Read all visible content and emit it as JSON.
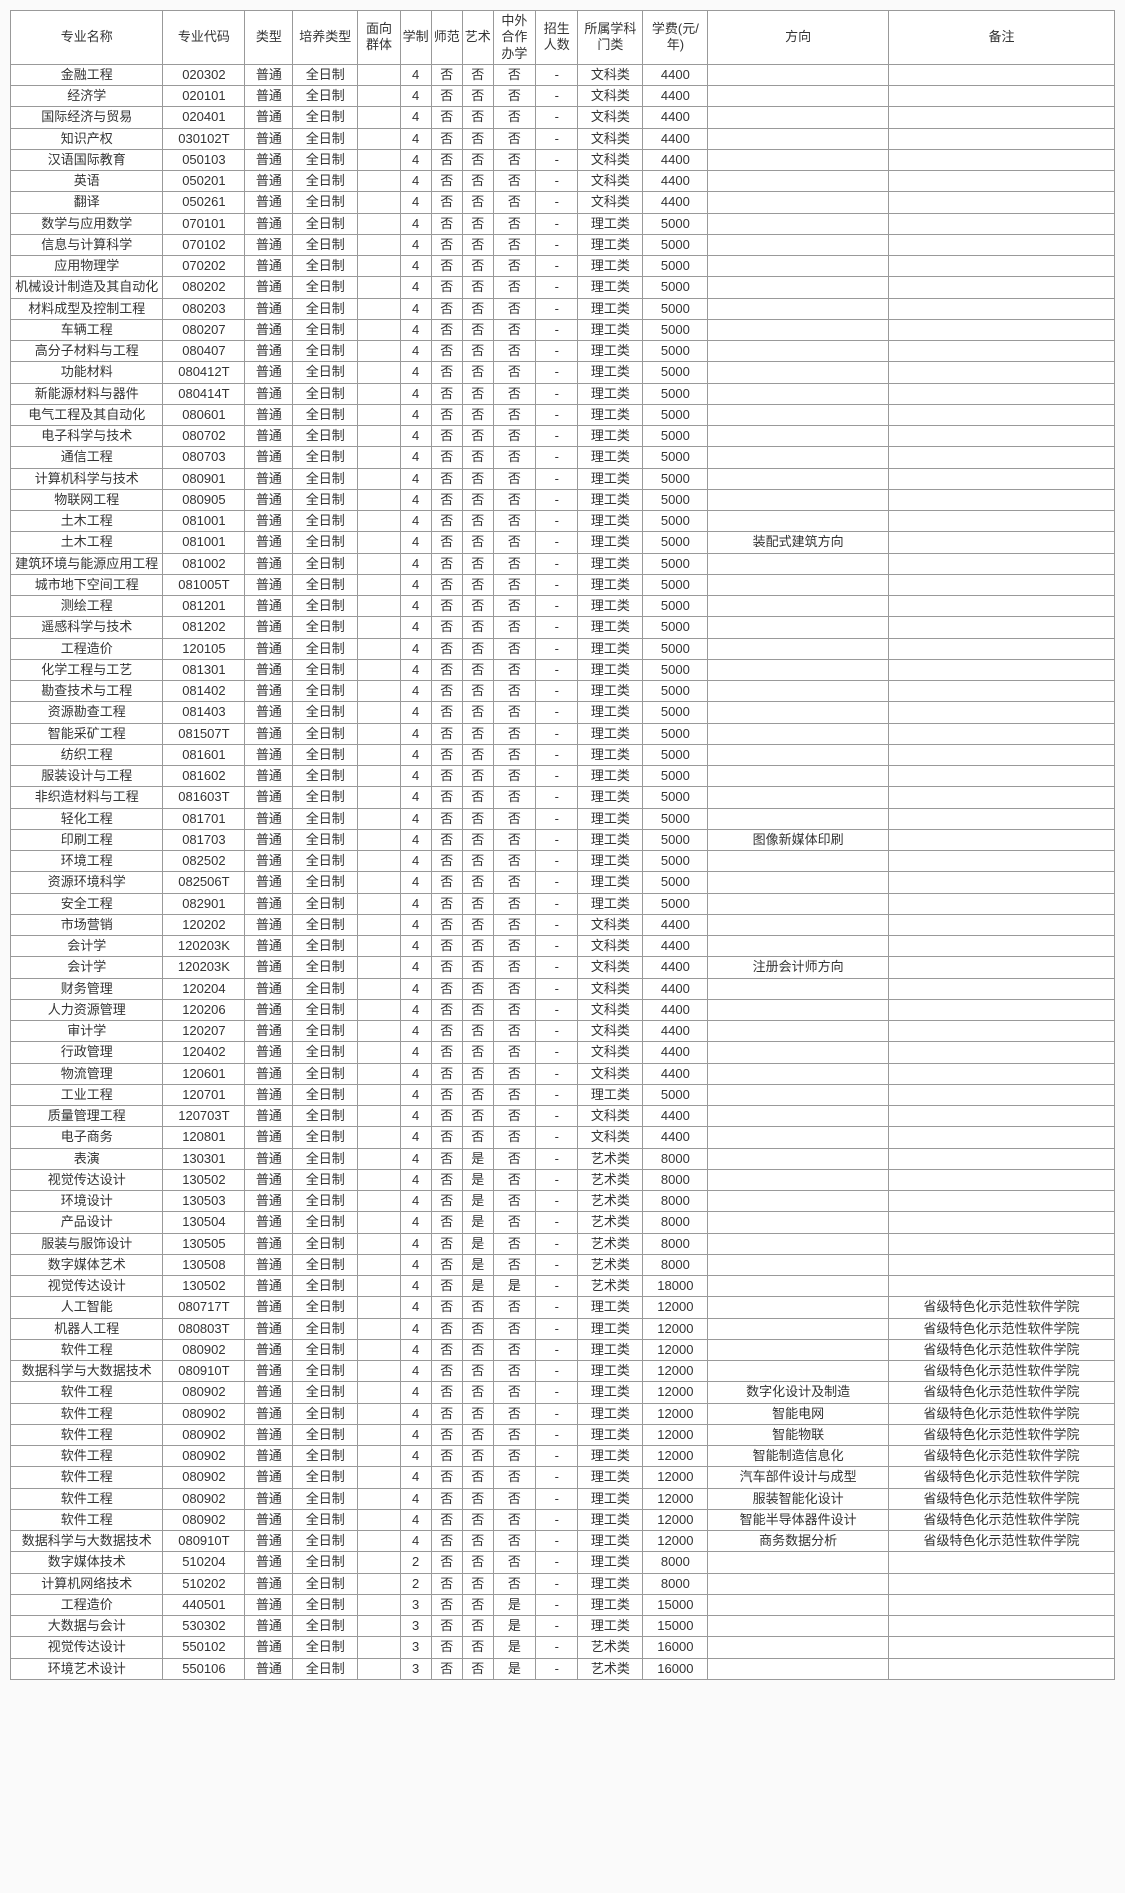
{
  "columns": [
    "专业名称",
    "专业代码",
    "类型",
    "培养类型",
    "面向群体",
    "学制",
    "师范",
    "艺术",
    "中外合作办学",
    "招生人数",
    "所属学科门类",
    "学费(元/年)",
    "方向",
    "备注"
  ],
  "rows": [
    [
      "金融工程",
      "020302",
      "普通",
      "全日制",
      "",
      "4",
      "否",
      "否",
      "否",
      "-",
      "文科类",
      "4400",
      "",
      ""
    ],
    [
      "经济学",
      "020101",
      "普通",
      "全日制",
      "",
      "4",
      "否",
      "否",
      "否",
      "-",
      "文科类",
      "4400",
      "",
      ""
    ],
    [
      "国际经济与贸易",
      "020401",
      "普通",
      "全日制",
      "",
      "4",
      "否",
      "否",
      "否",
      "-",
      "文科类",
      "4400",
      "",
      ""
    ],
    [
      "知识产权",
      "030102T",
      "普通",
      "全日制",
      "",
      "4",
      "否",
      "否",
      "否",
      "-",
      "文科类",
      "4400",
      "",
      ""
    ],
    [
      "汉语国际教育",
      "050103",
      "普通",
      "全日制",
      "",
      "4",
      "否",
      "否",
      "否",
      "-",
      "文科类",
      "4400",
      "",
      ""
    ],
    [
      "英语",
      "050201",
      "普通",
      "全日制",
      "",
      "4",
      "否",
      "否",
      "否",
      "-",
      "文科类",
      "4400",
      "",
      ""
    ],
    [
      "翻译",
      "050261",
      "普通",
      "全日制",
      "",
      "4",
      "否",
      "否",
      "否",
      "-",
      "文科类",
      "4400",
      "",
      ""
    ],
    [
      "数学与应用数学",
      "070101",
      "普通",
      "全日制",
      "",
      "4",
      "否",
      "否",
      "否",
      "-",
      "理工类",
      "5000",
      "",
      ""
    ],
    [
      "信息与计算科学",
      "070102",
      "普通",
      "全日制",
      "",
      "4",
      "否",
      "否",
      "否",
      "-",
      "理工类",
      "5000",
      "",
      ""
    ],
    [
      "应用物理学",
      "070202",
      "普通",
      "全日制",
      "",
      "4",
      "否",
      "否",
      "否",
      "-",
      "理工类",
      "5000",
      "",
      ""
    ],
    [
      "机械设计制造及其自动化",
      "080202",
      "普通",
      "全日制",
      "",
      "4",
      "否",
      "否",
      "否",
      "-",
      "理工类",
      "5000",
      "",
      ""
    ],
    [
      "材料成型及控制工程",
      "080203",
      "普通",
      "全日制",
      "",
      "4",
      "否",
      "否",
      "否",
      "-",
      "理工类",
      "5000",
      "",
      ""
    ],
    [
      "车辆工程",
      "080207",
      "普通",
      "全日制",
      "",
      "4",
      "否",
      "否",
      "否",
      "-",
      "理工类",
      "5000",
      "",
      ""
    ],
    [
      "高分子材料与工程",
      "080407",
      "普通",
      "全日制",
      "",
      "4",
      "否",
      "否",
      "否",
      "-",
      "理工类",
      "5000",
      "",
      ""
    ],
    [
      "功能材料",
      "080412T",
      "普通",
      "全日制",
      "",
      "4",
      "否",
      "否",
      "否",
      "-",
      "理工类",
      "5000",
      "",
      ""
    ],
    [
      "新能源材料与器件",
      "080414T",
      "普通",
      "全日制",
      "",
      "4",
      "否",
      "否",
      "否",
      "-",
      "理工类",
      "5000",
      "",
      ""
    ],
    [
      "电气工程及其自动化",
      "080601",
      "普通",
      "全日制",
      "",
      "4",
      "否",
      "否",
      "否",
      "-",
      "理工类",
      "5000",
      "",
      ""
    ],
    [
      "电子科学与技术",
      "080702",
      "普通",
      "全日制",
      "",
      "4",
      "否",
      "否",
      "否",
      "-",
      "理工类",
      "5000",
      "",
      ""
    ],
    [
      "通信工程",
      "080703",
      "普通",
      "全日制",
      "",
      "4",
      "否",
      "否",
      "否",
      "-",
      "理工类",
      "5000",
      "",
      ""
    ],
    [
      "计算机科学与技术",
      "080901",
      "普通",
      "全日制",
      "",
      "4",
      "否",
      "否",
      "否",
      "-",
      "理工类",
      "5000",
      "",
      ""
    ],
    [
      "物联网工程",
      "080905",
      "普通",
      "全日制",
      "",
      "4",
      "否",
      "否",
      "否",
      "-",
      "理工类",
      "5000",
      "",
      ""
    ],
    [
      "土木工程",
      "081001",
      "普通",
      "全日制",
      "",
      "4",
      "否",
      "否",
      "否",
      "-",
      "理工类",
      "5000",
      "",
      ""
    ],
    [
      "土木工程",
      "081001",
      "普通",
      "全日制",
      "",
      "4",
      "否",
      "否",
      "否",
      "-",
      "理工类",
      "5000",
      "装配式建筑方向",
      ""
    ],
    [
      "建筑环境与能源应用工程",
      "081002",
      "普通",
      "全日制",
      "",
      "4",
      "否",
      "否",
      "否",
      "-",
      "理工类",
      "5000",
      "",
      ""
    ],
    [
      "城市地下空间工程",
      "081005T",
      "普通",
      "全日制",
      "",
      "4",
      "否",
      "否",
      "否",
      "-",
      "理工类",
      "5000",
      "",
      ""
    ],
    [
      "测绘工程",
      "081201",
      "普通",
      "全日制",
      "",
      "4",
      "否",
      "否",
      "否",
      "-",
      "理工类",
      "5000",
      "",
      ""
    ],
    [
      "遥感科学与技术",
      "081202",
      "普通",
      "全日制",
      "",
      "4",
      "否",
      "否",
      "否",
      "-",
      "理工类",
      "5000",
      "",
      ""
    ],
    [
      "工程造价",
      "120105",
      "普通",
      "全日制",
      "",
      "4",
      "否",
      "否",
      "否",
      "-",
      "理工类",
      "5000",
      "",
      ""
    ],
    [
      "化学工程与工艺",
      "081301",
      "普通",
      "全日制",
      "",
      "4",
      "否",
      "否",
      "否",
      "-",
      "理工类",
      "5000",
      "",
      ""
    ],
    [
      "勘查技术与工程",
      "081402",
      "普通",
      "全日制",
      "",
      "4",
      "否",
      "否",
      "否",
      "-",
      "理工类",
      "5000",
      "",
      ""
    ],
    [
      "资源勘查工程",
      "081403",
      "普通",
      "全日制",
      "",
      "4",
      "否",
      "否",
      "否",
      "-",
      "理工类",
      "5000",
      "",
      ""
    ],
    [
      "智能采矿工程",
      "081507T",
      "普通",
      "全日制",
      "",
      "4",
      "否",
      "否",
      "否",
      "-",
      "理工类",
      "5000",
      "",
      ""
    ],
    [
      "纺织工程",
      "081601",
      "普通",
      "全日制",
      "",
      "4",
      "否",
      "否",
      "否",
      "-",
      "理工类",
      "5000",
      "",
      ""
    ],
    [
      "服装设计与工程",
      "081602",
      "普通",
      "全日制",
      "",
      "4",
      "否",
      "否",
      "否",
      "-",
      "理工类",
      "5000",
      "",
      ""
    ],
    [
      "非织造材料与工程",
      "081603T",
      "普通",
      "全日制",
      "",
      "4",
      "否",
      "否",
      "否",
      "-",
      "理工类",
      "5000",
      "",
      ""
    ],
    [
      "轻化工程",
      "081701",
      "普通",
      "全日制",
      "",
      "4",
      "否",
      "否",
      "否",
      "-",
      "理工类",
      "5000",
      "",
      ""
    ],
    [
      "印刷工程",
      "081703",
      "普通",
      "全日制",
      "",
      "4",
      "否",
      "否",
      "否",
      "-",
      "理工类",
      "5000",
      "图像新媒体印刷",
      ""
    ],
    [
      "环境工程",
      "082502",
      "普通",
      "全日制",
      "",
      "4",
      "否",
      "否",
      "否",
      "-",
      "理工类",
      "5000",
      "",
      ""
    ],
    [
      "资源环境科学",
      "082506T",
      "普通",
      "全日制",
      "",
      "4",
      "否",
      "否",
      "否",
      "-",
      "理工类",
      "5000",
      "",
      ""
    ],
    [
      "安全工程",
      "082901",
      "普通",
      "全日制",
      "",
      "4",
      "否",
      "否",
      "否",
      "-",
      "理工类",
      "5000",
      "",
      ""
    ],
    [
      "市场营销",
      "120202",
      "普通",
      "全日制",
      "",
      "4",
      "否",
      "否",
      "否",
      "-",
      "文科类",
      "4400",
      "",
      ""
    ],
    [
      "会计学",
      "120203K",
      "普通",
      "全日制",
      "",
      "4",
      "否",
      "否",
      "否",
      "-",
      "文科类",
      "4400",
      "",
      ""
    ],
    [
      "会计学",
      "120203K",
      "普通",
      "全日制",
      "",
      "4",
      "否",
      "否",
      "否",
      "-",
      "文科类",
      "4400",
      "注册会计师方向",
      ""
    ],
    [
      "财务管理",
      "120204",
      "普通",
      "全日制",
      "",
      "4",
      "否",
      "否",
      "否",
      "-",
      "文科类",
      "4400",
      "",
      ""
    ],
    [
      "人力资源管理",
      "120206",
      "普通",
      "全日制",
      "",
      "4",
      "否",
      "否",
      "否",
      "-",
      "文科类",
      "4400",
      "",
      ""
    ],
    [
      "审计学",
      "120207",
      "普通",
      "全日制",
      "",
      "4",
      "否",
      "否",
      "否",
      "-",
      "文科类",
      "4400",
      "",
      ""
    ],
    [
      "行政管理",
      "120402",
      "普通",
      "全日制",
      "",
      "4",
      "否",
      "否",
      "否",
      "-",
      "文科类",
      "4400",
      "",
      ""
    ],
    [
      "物流管理",
      "120601",
      "普通",
      "全日制",
      "",
      "4",
      "否",
      "否",
      "否",
      "-",
      "文科类",
      "4400",
      "",
      ""
    ],
    [
      "工业工程",
      "120701",
      "普通",
      "全日制",
      "",
      "4",
      "否",
      "否",
      "否",
      "-",
      "理工类",
      "5000",
      "",
      ""
    ],
    [
      "质量管理工程",
      "120703T",
      "普通",
      "全日制",
      "",
      "4",
      "否",
      "否",
      "否",
      "-",
      "文科类",
      "4400",
      "",
      ""
    ],
    [
      "电子商务",
      "120801",
      "普通",
      "全日制",
      "",
      "4",
      "否",
      "否",
      "否",
      "-",
      "文科类",
      "4400",
      "",
      ""
    ],
    [
      "表演",
      "130301",
      "普通",
      "全日制",
      "",
      "4",
      "否",
      "是",
      "否",
      "-",
      "艺术类",
      "8000",
      "",
      ""
    ],
    [
      "视觉传达设计",
      "130502",
      "普通",
      "全日制",
      "",
      "4",
      "否",
      "是",
      "否",
      "-",
      "艺术类",
      "8000",
      "",
      ""
    ],
    [
      "环境设计",
      "130503",
      "普通",
      "全日制",
      "",
      "4",
      "否",
      "是",
      "否",
      "-",
      "艺术类",
      "8000",
      "",
      ""
    ],
    [
      "产品设计",
      "130504",
      "普通",
      "全日制",
      "",
      "4",
      "否",
      "是",
      "否",
      "-",
      "艺术类",
      "8000",
      "",
      ""
    ],
    [
      "服装与服饰设计",
      "130505",
      "普通",
      "全日制",
      "",
      "4",
      "否",
      "是",
      "否",
      "-",
      "艺术类",
      "8000",
      "",
      ""
    ],
    [
      "数字媒体艺术",
      "130508",
      "普通",
      "全日制",
      "",
      "4",
      "否",
      "是",
      "否",
      "-",
      "艺术类",
      "8000",
      "",
      ""
    ],
    [
      "视觉传达设计",
      "130502",
      "普通",
      "全日制",
      "",
      "4",
      "否",
      "是",
      "是",
      "-",
      "艺术类",
      "18000",
      "",
      ""
    ],
    [
      "人工智能",
      "080717T",
      "普通",
      "全日制",
      "",
      "4",
      "否",
      "否",
      "否",
      "-",
      "理工类",
      "12000",
      "",
      "省级特色化示范性软件学院"
    ],
    [
      "机器人工程",
      "080803T",
      "普通",
      "全日制",
      "",
      "4",
      "否",
      "否",
      "否",
      "-",
      "理工类",
      "12000",
      "",
      "省级特色化示范性软件学院"
    ],
    [
      "软件工程",
      "080902",
      "普通",
      "全日制",
      "",
      "4",
      "否",
      "否",
      "否",
      "-",
      "理工类",
      "12000",
      "",
      "省级特色化示范性软件学院"
    ],
    [
      "数据科学与大数据技术",
      "080910T",
      "普通",
      "全日制",
      "",
      "4",
      "否",
      "否",
      "否",
      "-",
      "理工类",
      "12000",
      "",
      "省级特色化示范性软件学院"
    ],
    [
      "软件工程",
      "080902",
      "普通",
      "全日制",
      "",
      "4",
      "否",
      "否",
      "否",
      "-",
      "理工类",
      "12000",
      "数字化设计及制造",
      "省级特色化示范性软件学院"
    ],
    [
      "软件工程",
      "080902",
      "普通",
      "全日制",
      "",
      "4",
      "否",
      "否",
      "否",
      "-",
      "理工类",
      "12000",
      "智能电网",
      "省级特色化示范性软件学院"
    ],
    [
      "软件工程",
      "080902",
      "普通",
      "全日制",
      "",
      "4",
      "否",
      "否",
      "否",
      "-",
      "理工类",
      "12000",
      "智能物联",
      "省级特色化示范性软件学院"
    ],
    [
      "软件工程",
      "080902",
      "普通",
      "全日制",
      "",
      "4",
      "否",
      "否",
      "否",
      "-",
      "理工类",
      "12000",
      "智能制造信息化",
      "省级特色化示范性软件学院"
    ],
    [
      "软件工程",
      "080902",
      "普通",
      "全日制",
      "",
      "4",
      "否",
      "否",
      "否",
      "-",
      "理工类",
      "12000",
      "汽车部件设计与成型",
      "省级特色化示范性软件学院"
    ],
    [
      "软件工程",
      "080902",
      "普通",
      "全日制",
      "",
      "4",
      "否",
      "否",
      "否",
      "-",
      "理工类",
      "12000",
      "服装智能化设计",
      "省级特色化示范性软件学院"
    ],
    [
      "软件工程",
      "080902",
      "普通",
      "全日制",
      "",
      "4",
      "否",
      "否",
      "否",
      "-",
      "理工类",
      "12000",
      "智能半导体器件设计",
      "省级特色化示范性软件学院"
    ],
    [
      "数据科学与大数据技术",
      "080910T",
      "普通",
      "全日制",
      "",
      "4",
      "否",
      "否",
      "否",
      "-",
      "理工类",
      "12000",
      "商务数据分析",
      "省级特色化示范性软件学院"
    ],
    [
      "数字媒体技术",
      "510204",
      "普通",
      "全日制",
      "",
      "2",
      "否",
      "否",
      "否",
      "-",
      "理工类",
      "8000",
      "",
      ""
    ],
    [
      "计算机网络技术",
      "510202",
      "普通",
      "全日制",
      "",
      "2",
      "否",
      "否",
      "否",
      "-",
      "理工类",
      "8000",
      "",
      ""
    ],
    [
      "工程造价",
      "440501",
      "普通",
      "全日制",
      "",
      "3",
      "否",
      "否",
      "是",
      "-",
      "理工类",
      "15000",
      "",
      ""
    ],
    [
      "大数据与会计",
      "530302",
      "普通",
      "全日制",
      "",
      "3",
      "否",
      "否",
      "是",
      "-",
      "理工类",
      "15000",
      "",
      ""
    ],
    [
      "视觉传达设计",
      "550102",
      "普通",
      "全日制",
      "",
      "3",
      "否",
      "否",
      "是",
      "-",
      "艺术类",
      "16000",
      "",
      ""
    ],
    [
      "环境艺术设计",
      "550106",
      "普通",
      "全日制",
      "",
      "3",
      "否",
      "否",
      "是",
      "-",
      "艺术类",
      "16000",
      "",
      ""
    ]
  ],
  "col_classes": [
    "c-name",
    "c-code",
    "c-type",
    "c-mode",
    "c-group",
    "c-xz",
    "c-sf",
    "c-ys",
    "c-zw",
    "c-rs",
    "c-km",
    "c-fee",
    "c-dir",
    "c-note"
  ]
}
